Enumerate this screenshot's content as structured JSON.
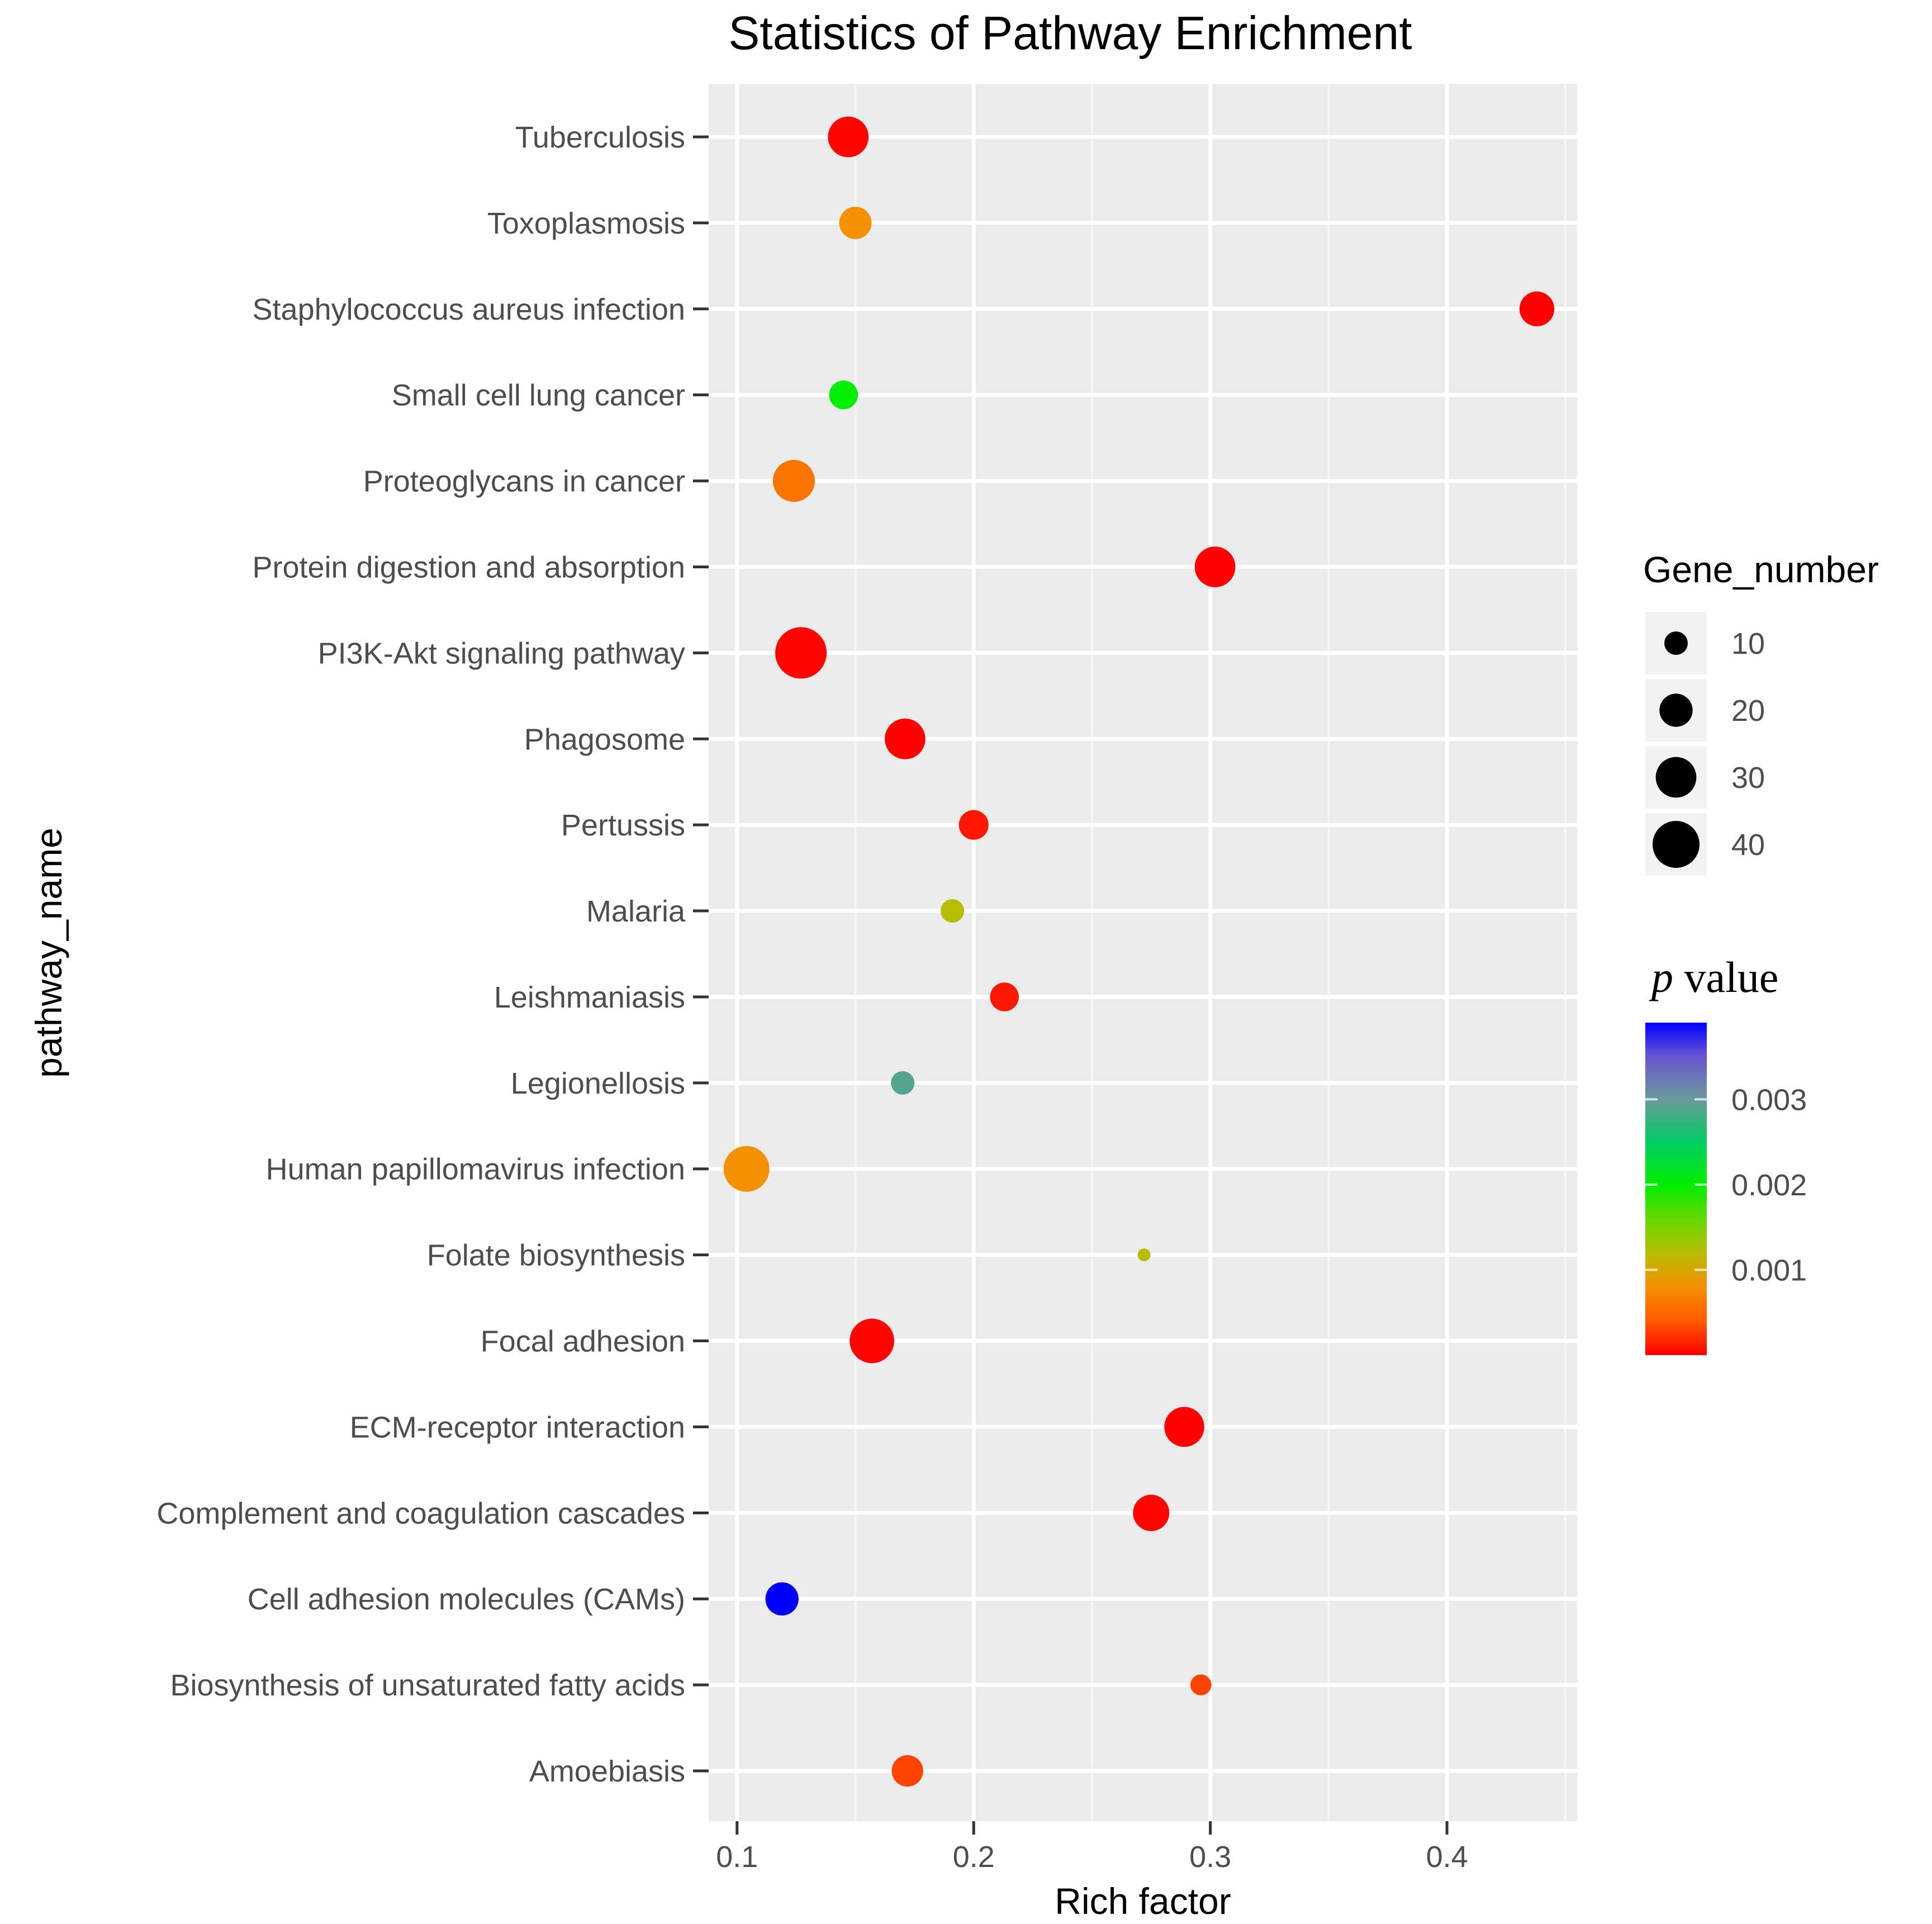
{
  "chart_data": {
    "type": "scatter",
    "title": "Statistics of Pathway Enrichment",
    "xlabel": "Rich factor",
    "ylabel": "pathway_name",
    "xlim": [
      0.088,
      0.455
    ],
    "xticks": [
      0.1,
      0.2,
      0.3,
      0.4
    ],
    "xtick_labels": [
      "0.1",
      "0.2",
      "0.3",
      "0.4"
    ],
    "grid": true,
    "points": [
      {
        "pathway": "Tuberculosis",
        "rich_factor": 0.147,
        "gene_number": 30,
        "p_value": 2e-05
      },
      {
        "pathway": "Toxoplasmosis",
        "rich_factor": 0.15,
        "gene_number": 19,
        "p_value": 0.0008
      },
      {
        "pathway": "Staphylococcus aureus infection",
        "rich_factor": 0.438,
        "gene_number": 22,
        "p_value": 1e-05
      },
      {
        "pathway": "Small cell lung cancer",
        "rich_factor": 0.145,
        "gene_number": 15,
        "p_value": 0.002
      },
      {
        "pathway": "Proteoglycans in cancer",
        "rich_factor": 0.124,
        "gene_number": 32,
        "p_value": 0.0006
      },
      {
        "pathway": "Protein digestion and absorption",
        "rich_factor": 0.302,
        "gene_number": 30,
        "p_value": 1e-05
      },
      {
        "pathway": "PI3K-Akt signaling pathway",
        "rich_factor": 0.127,
        "gene_number": 48,
        "p_value": 2e-05
      },
      {
        "pathway": "Phagosome",
        "rich_factor": 0.171,
        "gene_number": 30,
        "p_value": 1e-05
      },
      {
        "pathway": "Pertussis",
        "rich_factor": 0.2,
        "gene_number": 16,
        "p_value": 0.0001
      },
      {
        "pathway": "Malaria",
        "rich_factor": 0.191,
        "gene_number": 10,
        "p_value": 0.0012
      },
      {
        "pathway": "Leishmaniasis",
        "rich_factor": 0.213,
        "gene_number": 15,
        "p_value": 0.0001
      },
      {
        "pathway": "Legionellosis",
        "rich_factor": 0.17,
        "gene_number": 10,
        "p_value": 0.0029
      },
      {
        "pathway": "Human papillomavirus infection",
        "rich_factor": 0.104,
        "gene_number": 38,
        "p_value": 0.0008
      },
      {
        "pathway": "Folate biosynthesis",
        "rich_factor": 0.272,
        "gene_number": 3,
        "p_value": 0.0012
      },
      {
        "pathway": "Focal adhesion",
        "rich_factor": 0.157,
        "gene_number": 36,
        "p_value": 2e-05
      },
      {
        "pathway": "ECM-receptor interaction",
        "rich_factor": 0.289,
        "gene_number": 29,
        "p_value": 1e-05
      },
      {
        "pathway": "Complement and coagulation cascades",
        "rich_factor": 0.275,
        "gene_number": 24,
        "p_value": 2e-05
      },
      {
        "pathway": "Cell adhesion molecules (CAMs)",
        "rich_factor": 0.119,
        "gene_number": 20,
        "p_value": 0.0039
      },
      {
        "pathway": "Biosynthesis of unsaturated fatty acids",
        "rich_factor": 0.296,
        "gene_number": 8,
        "p_value": 0.0003
      },
      {
        "pathway": "Amoebiasis",
        "rich_factor": 0.172,
        "gene_number": 18,
        "p_value": 0.0003
      }
    ],
    "size_legend": {
      "title": "Gene_number",
      "values": [
        10,
        20,
        30,
        40
      ],
      "labels": [
        "10",
        "20",
        "30",
        "40"
      ]
    },
    "color_legend": {
      "title_italic": "p",
      "title_rest": " value",
      "range": [
        0,
        0.0039
      ],
      "ticks": [
        0.001,
        0.002,
        0.003
      ],
      "tick_labels": [
        "0.001",
        "0.002",
        "0.003"
      ],
      "colors": [
        {
          "at": 0,
          "color": "#ff0000"
        },
        {
          "at": 0.0004,
          "color": "#ff5a00"
        },
        {
          "at": 0.0008,
          "color": "#f59000"
        },
        {
          "at": 0.0012,
          "color": "#b8bc00"
        },
        {
          "at": 0.0016,
          "color": "#66d800"
        },
        {
          "at": 0.002,
          "color": "#00ee00"
        },
        {
          "at": 0.0025,
          "color": "#00cc66"
        },
        {
          "at": 0.003,
          "color": "#6a9a9a"
        },
        {
          "at": 0.0035,
          "color": "#6a55d0"
        },
        {
          "at": 0.0039,
          "color": "#0000ff"
        }
      ]
    }
  }
}
